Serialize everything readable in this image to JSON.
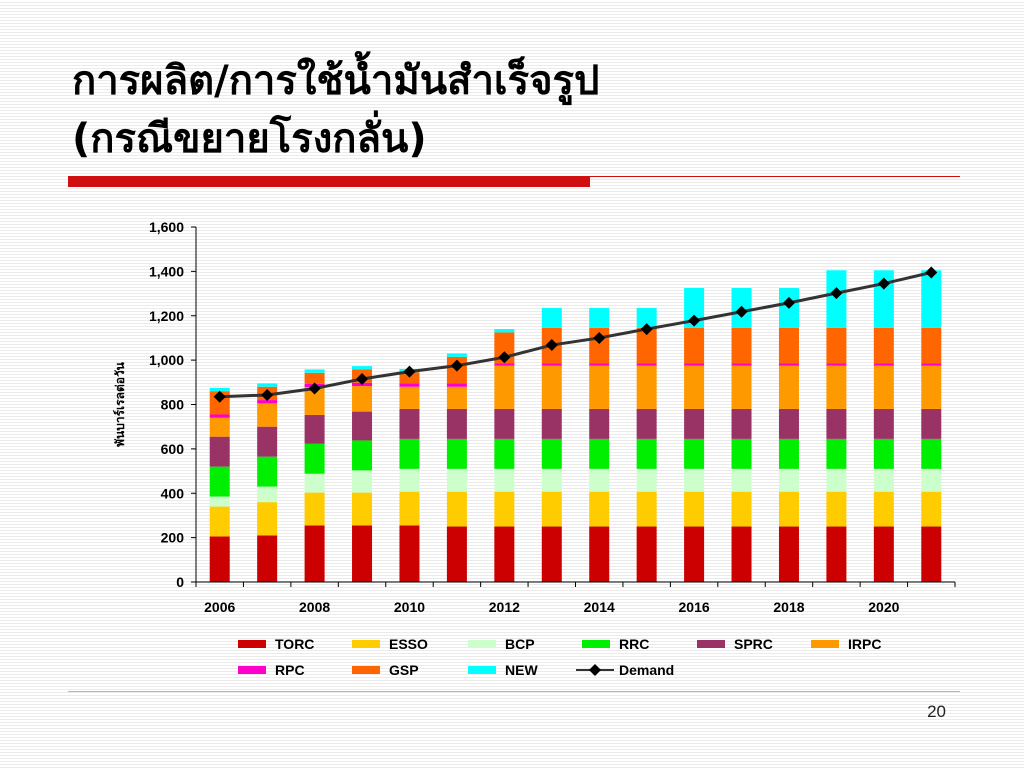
{
  "slide": {
    "title_line1": "การผลิต/การใช้น้ำมันสำเร็จรูป",
    "title_line2": "(กรณีขยายโรงกลั่น)",
    "page_number": "20"
  },
  "chart_data": {
    "type": "bar",
    "stacked": true,
    "categories": [
      "2006",
      "2007",
      "2008",
      "2009",
      "2010",
      "2011",
      "2012",
      "2013",
      "2014",
      "2015",
      "2016",
      "2017",
      "2018",
      "2019",
      "2020",
      "2021"
    ],
    "x_tick_labels": [
      "2006",
      "",
      "2008",
      "",
      "2010",
      "",
      "2012",
      "",
      "2014",
      "",
      "2016",
      "",
      "2018",
      "",
      "2020",
      ""
    ],
    "ylabel": "พันบาร์เรลต่อวัน",
    "ylim": [
      0,
      1600
    ],
    "y_ticks": [
      0,
      200,
      400,
      600,
      800,
      1000,
      1200,
      1400,
      1600
    ],
    "y_tick_labels": [
      "0",
      "200",
      "400",
      "600",
      "800",
      "1,000",
      "1,200",
      "1,400",
      "1,600"
    ],
    "legend_position": "bottom",
    "series": [
      {
        "name": "TORC",
        "color": "#cc0000",
        "values": [
          205,
          210,
          255,
          255,
          255,
          250,
          250,
          250,
          250,
          250,
          250,
          250,
          250,
          250,
          250,
          250
        ]
      },
      {
        "name": "ESSO",
        "color": "#ffcc00",
        "values": [
          135,
          150,
          148,
          148,
          152,
          157,
          157,
          157,
          157,
          157,
          157,
          157,
          157,
          157,
          157,
          157
        ]
      },
      {
        "name": "BCP",
        "color": "#ccffcc",
        "values": [
          45,
          70,
          85,
          100,
          103,
          103,
          103,
          103,
          103,
          103,
          103,
          103,
          103,
          103,
          103,
          103
        ]
      },
      {
        "name": "RRC",
        "color": "#00ee00",
        "values": [
          135,
          135,
          135,
          135,
          135,
          135,
          135,
          135,
          135,
          135,
          135,
          135,
          135,
          135,
          135,
          135
        ]
      },
      {
        "name": "SPRC",
        "color": "#993366",
        "values": [
          135,
          135,
          130,
          130,
          135,
          135,
          135,
          135,
          135,
          135,
          135,
          135,
          135,
          135,
          135,
          135
        ]
      },
      {
        "name": "IRPC",
        "color": "#ff9900",
        "values": [
          85,
          105,
          125,
          115,
          100,
          100,
          195,
          195,
          195,
          195,
          195,
          195,
          195,
          195,
          195,
          195
        ]
      },
      {
        "name": "RPC",
        "color": "#ff00cc",
        "values": [
          15,
          15,
          15,
          15,
          15,
          15,
          10,
          10,
          10,
          10,
          10,
          10,
          10,
          10,
          10,
          10
        ]
      },
      {
        "name": "GSP",
        "color": "#ff6600",
        "values": [
          105,
          60,
          50,
          60,
          50,
          120,
          140,
          160,
          160,
          160,
          160,
          160,
          160,
          160,
          160,
          160
        ]
      },
      {
        "name": "NEW",
        "color": "#00ffff",
        "values": [
          15,
          15,
          15,
          15,
          15,
          15,
          15,
          90,
          90,
          90,
          180,
          180,
          180,
          260,
          260,
          260
        ]
      }
    ],
    "line_series": {
      "name": "Demand",
      "color": "#333333",
      "marker": "diamond",
      "values": [
        835,
        843,
        872,
        915,
        948,
        975,
        1013,
        1068,
        1100,
        1140,
        1178,
        1218,
        1258,
        1302,
        1345,
        1395
      ]
    }
  }
}
